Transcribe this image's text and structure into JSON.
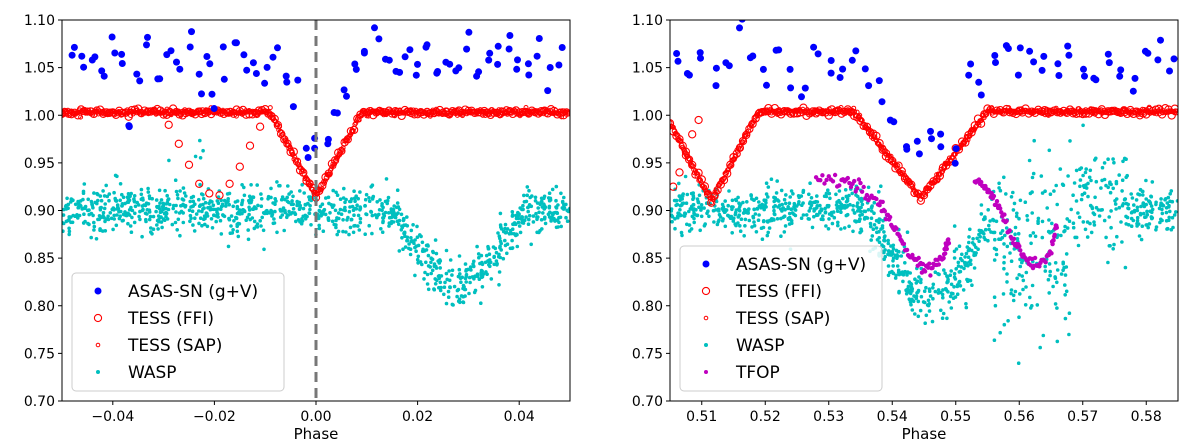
{
  "chart_data": [
    {
      "type": "scatter",
      "xlabel": "Phase",
      "ylabel": "",
      "xlim": [
        -0.05,
        0.05
      ],
      "ylim": [
        0.7,
        1.1
      ],
      "xticks": [
        -0.04,
        -0.02,
        0.0,
        0.02,
        0.04
      ],
      "xtick_labels": [
        "−0.04",
        "−0.02",
        "0.00",
        "0.02",
        "0.04"
      ],
      "yticks": [
        0.7,
        0.75,
        0.8,
        0.85,
        0.9,
        0.95,
        1.0,
        1.05,
        1.1
      ],
      "ytick_labels": [
        "0.70",
        "0.75",
        "0.80",
        "0.85",
        "0.90",
        "0.95",
        "1.00",
        "1.05",
        "1.10"
      ],
      "vline": {
        "x": 0.0,
        "style": "dashed",
        "color": "#777777"
      },
      "legend_position": "lower-left",
      "series": [
        {
          "name": "ASAS-SN (g+V)",
          "color": "#0000ff",
          "marker": "filled-circle",
          "description": "scattered points near 1.03–1.08 out of eclipse, dipping to ~0.95 near phase 0",
          "points": [
            [
              -0.048,
              1.07
            ],
            [
              -0.046,
              1.05
            ],
            [
              -0.044,
              1.06
            ],
            [
              -0.042,
              1.04
            ],
            [
              -0.04,
              1.07
            ],
            [
              -0.038,
              1.06
            ],
            [
              -0.037,
              0.98
            ],
            [
              -0.035,
              1.05
            ],
            [
              -0.033,
              1.07
            ],
            [
              -0.031,
              1.04
            ],
            [
              -0.029,
              1.06
            ],
            [
              -0.027,
              1.05
            ],
            [
              -0.025,
              1.07
            ],
            [
              -0.023,
              1.04
            ],
            [
              -0.021,
              1.06
            ],
            [
              -0.02,
              1.01
            ],
            [
              -0.018,
              1.05
            ],
            [
              -0.016,
              1.07
            ],
            [
              -0.014,
              1.05
            ],
            [
              -0.012,
              1.06
            ],
            [
              -0.01,
              1.04
            ],
            [
              -0.008,
              1.06
            ],
            [
              -0.006,
              1.03
            ],
            [
              -0.004,
              1.02
            ],
            [
              -0.002,
              0.95
            ],
            [
              0.0,
              0.96
            ],
            [
              0.002,
              0.97
            ],
            [
              0.004,
              1.0
            ],
            [
              0.006,
              1.02
            ],
            [
              0.008,
              1.05
            ],
            [
              0.01,
              1.07
            ],
            [
              0.012,
              1.08
            ],
            [
              0.014,
              1.06
            ],
            [
              0.016,
              1.04
            ],
            [
              0.018,
              1.06
            ],
            [
              0.02,
              1.05
            ],
            [
              0.022,
              1.07
            ],
            [
              0.024,
              1.04
            ],
            [
              0.026,
              1.06
            ],
            [
              0.028,
              1.05
            ],
            [
              0.03,
              1.07
            ],
            [
              0.032,
              1.04
            ],
            [
              0.034,
              1.06
            ],
            [
              0.036,
              1.05
            ],
            [
              0.038,
              1.07
            ],
            [
              0.04,
              1.06
            ],
            [
              0.042,
              1.05
            ],
            [
              0.044,
              1.07
            ],
            [
              0.046,
              1.04
            ],
            [
              0.048,
              1.06
            ]
          ]
        },
        {
          "name": "TESS (FFI)",
          "color": "#ff0000",
          "marker": "open-circle",
          "description": "flat ~1.003 with a V-shaped primary eclipse centered at phase ~0.00, min ~0.915",
          "eclipses": [
            {
              "center": 0.0,
              "halfwidth": 0.009,
              "depth": 0.088
            }
          ],
          "extra_points": [
            [
              -0.029,
              0.99
            ],
            [
              -0.027,
              0.97
            ],
            [
              -0.025,
              0.948
            ],
            [
              -0.023,
              0.928
            ],
            [
              -0.021,
              0.918
            ],
            [
              -0.019,
              0.916
            ],
            [
              -0.017,
              0.928
            ],
            [
              -0.015,
              0.946
            ],
            [
              -0.013,
              0.968
            ],
            [
              -0.011,
              0.988
            ]
          ],
          "baseline": 1.003
        },
        {
          "name": "TESS (SAP)",
          "color": "#ff0000",
          "marker": "small-open-circle",
          "description": "dense flat sequence ~1.003 with same primary eclipse",
          "baseline": 1.003
        },
        {
          "name": "WASP",
          "color": "#00bfbf",
          "marker": "small-filled-circle",
          "description": "noisy baseline ~0.90 with a broad dip to ~0.82 centered near phase 0.028",
          "baseline": 0.9,
          "noise": 0.012,
          "dip": {
            "center": 0.028,
            "halfwidth": 0.013,
            "depth": 0.08
          }
        }
      ]
    },
    {
      "type": "scatter",
      "xlabel": "Phase",
      "ylabel": "",
      "xlim": [
        0.505,
        0.585
      ],
      "ylim": [
        0.7,
        1.1
      ],
      "xticks": [
        0.51,
        0.52,
        0.53,
        0.54,
        0.55,
        0.56,
        0.57,
        0.58
      ],
      "xtick_labels": [
        "0.51",
        "0.52",
        "0.53",
        "0.54",
        "0.55",
        "0.56",
        "0.57",
        "0.58"
      ],
      "yticks": [
        0.7,
        0.75,
        0.8,
        0.85,
        0.9,
        0.95,
        1.0,
        1.05,
        1.1
      ],
      "ytick_labels": [
        "0.70",
        "0.75",
        "0.80",
        "0.85",
        "0.90",
        "0.95",
        "1.00",
        "1.05",
        "1.10"
      ],
      "legend_position": "lower-left",
      "series": [
        {
          "name": "ASAS-SN (g+V)",
          "color": "#0000ff",
          "marker": "filled-circle",
          "description": "scattered points near 1.03–1.08, dips ~0.96 near phase 0.544",
          "points": [
            [
              0.506,
              1.06
            ],
            [
              0.508,
              1.05
            ],
            [
              0.51,
              1.07
            ],
            [
              0.512,
              1.04
            ],
            [
              0.514,
              1.05
            ],
            [
              0.516,
              1.09
            ],
            [
              0.518,
              1.06
            ],
            [
              0.52,
              1.05
            ],
            [
              0.522,
              1.07
            ],
            [
              0.524,
              1.04
            ],
            [
              0.526,
              1.03
            ],
            [
              0.528,
              1.07
            ],
            [
              0.53,
              1.05
            ],
            [
              0.532,
              1.04
            ],
            [
              0.534,
              1.06
            ],
            [
              0.536,
              1.05
            ],
            [
              0.538,
              1.03
            ],
            [
              0.54,
              0.99
            ],
            [
              0.542,
              0.97
            ],
            [
              0.544,
              0.96
            ],
            [
              0.546,
              0.98
            ],
            [
              0.548,
              0.97
            ],
            [
              0.55,
              0.95
            ],
            [
              0.552,
              1.04
            ],
            [
              0.554,
              1.03
            ],
            [
              0.556,
              1.05
            ],
            [
              0.558,
              1.07
            ],
            [
              0.56,
              1.05
            ],
            [
              0.562,
              1.06
            ],
            [
              0.564,
              1.05
            ],
            [
              0.566,
              1.04
            ],
            [
              0.568,
              1.06
            ],
            [
              0.57,
              1.05
            ],
            [
              0.572,
              1.04
            ],
            [
              0.574,
              1.06
            ],
            [
              0.576,
              1.05
            ],
            [
              0.578,
              1.02
            ],
            [
              0.58,
              1.06
            ],
            [
              0.582,
              1.07
            ],
            [
              0.584,
              1.05
            ]
          ]
        },
        {
          "name": "TESS (FFI)",
          "color": "#ff0000",
          "marker": "open-circle",
          "description": "flat ~1.004 with eclipses at ~0.51 (min ~0.91) and ~0.544 (min ~0.913)",
          "eclipses": [
            {
              "center": 0.5115,
              "halfwidth": 0.0075,
              "depth": 0.094
            },
            {
              "center": 0.5445,
              "halfwidth": 0.0105,
              "depth": 0.091
            }
          ],
          "baseline": 1.004
        },
        {
          "name": "TESS (SAP)",
          "color": "#ff0000",
          "marker": "small-open-circle",
          "description": "dense flat sequence with same eclipses",
          "baseline": 1.004
        },
        {
          "name": "WASP",
          "color": "#00bfbf",
          "marker": "small-filled-circle",
          "description": "noisy baseline ~0.90 with a dip to ~0.80 near 0.546 and ~0.82 near 0.561",
          "baseline": 0.9,
          "noise": 0.012
        },
        {
          "name": "TFOP",
          "color": "#bf00bf",
          "marker": "small-filled-circle",
          "description": "two ingress/egress segments: 0.528–0.548 from ~0.93 down to ~0.84 and back to ~0.87; 0.553–0.566 from ~0.93 down to ~0.84 and back to ~0.89",
          "segments": [
            [
              [
                0.528,
                0.932
              ],
              [
                0.532,
                0.93
              ],
              [
                0.535,
                0.926
              ],
              [
                0.538,
                0.905
              ],
              [
                0.54,
                0.885
              ],
              [
                0.542,
                0.862
              ],
              [
                0.544,
                0.843
              ],
              [
                0.546,
                0.838
              ],
              [
                0.548,
                0.852
              ],
              [
                0.549,
                0.87
              ]
            ],
            [
              [
                0.553,
                0.93
              ],
              [
                0.555,
                0.922
              ],
              [
                0.557,
                0.9
              ],
              [
                0.559,
                0.87
              ],
              [
                0.561,
                0.848
              ],
              [
                0.563,
                0.842
              ],
              [
                0.565,
                0.858
              ],
              [
                0.566,
                0.89
              ]
            ]
          ]
        }
      ]
    }
  ]
}
